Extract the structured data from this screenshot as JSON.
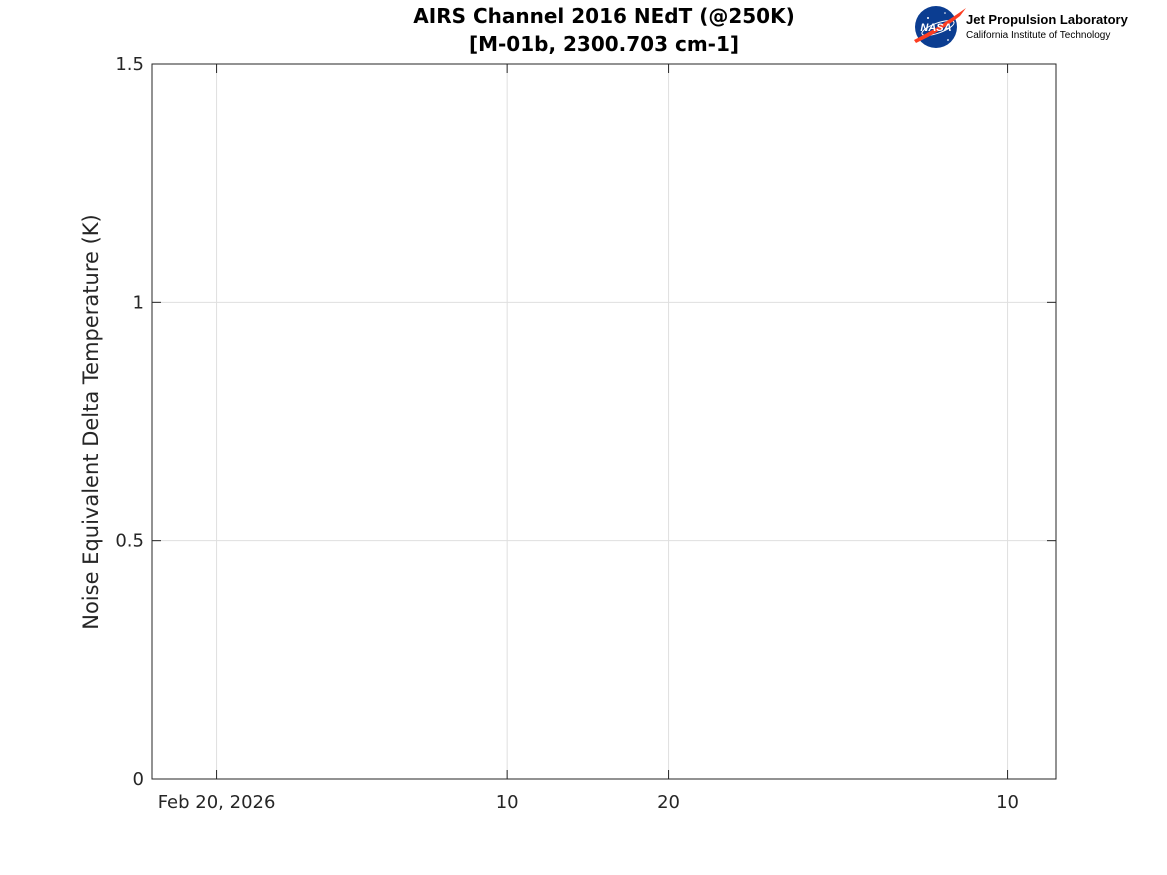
{
  "chart_data": {
    "type": "line",
    "title": [
      "AIRS Channel 2016 NEdT (@250K)",
      "[M-01b, 2300.703 cm-1]"
    ],
    "xlabel": "",
    "ylabel": "Noise Equivalent Delta Temperature (K)",
    "ylim": [
      0,
      1.5
    ],
    "xlim": [
      "2026-02-16",
      "2026-04-13"
    ],
    "x_ticks": [
      {
        "value": "2026-02-20",
        "label": "Feb 20, 2026"
      },
      {
        "value": "2026-03-10",
        "label": "10"
      },
      {
        "value": "2026-03-20",
        "label": "20"
      },
      {
        "value": "2026-04-10",
        "label": "10"
      }
    ],
    "y_ticks": [
      {
        "value": 0,
        "label": "0"
      },
      {
        "value": 0.5,
        "label": "0.5"
      },
      {
        "value": 1,
        "label": "1"
      },
      {
        "value": 1.5,
        "label": "1.5"
      }
    ],
    "grid": true,
    "series": []
  },
  "logo": {
    "name": "Jet Propulsion Laboratory",
    "subtitle": "California Institute of Technology",
    "emblem_text": "NASA",
    "emblem_icon": "nasa-meatball-icon"
  },
  "colors": {
    "axis": "#262626",
    "grid": "#dfdfdf",
    "nasa_blue": "#0b3d91",
    "nasa_red": "#fc3d21"
  }
}
